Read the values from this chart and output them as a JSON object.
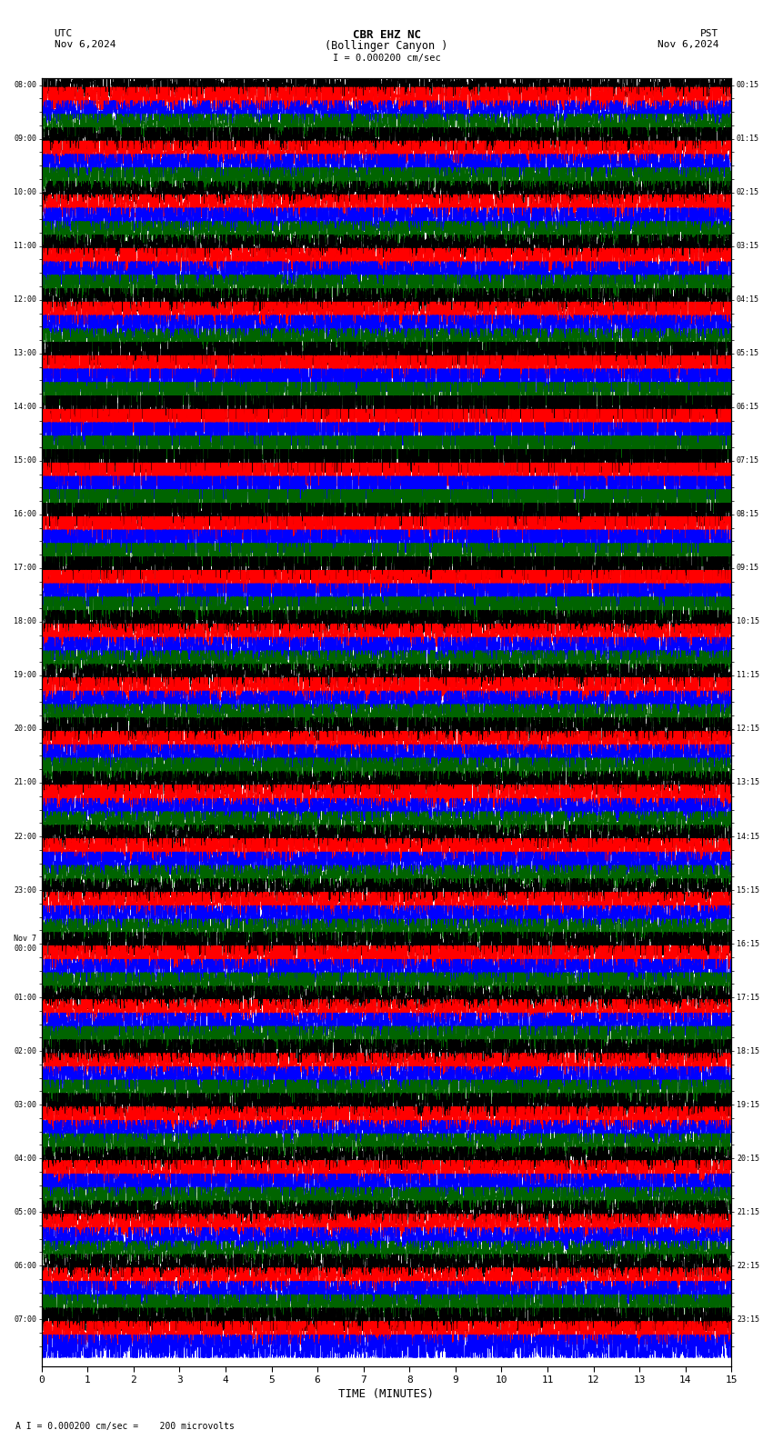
{
  "title_line1": "CBR EHZ NC",
  "title_line2": "(Bollinger Canyon )",
  "scale_label": "I = 0.000200 cm/sec",
  "utc_label": "UTC",
  "utc_date": "Nov 6,2024",
  "pst_label": "PST",
  "pst_date": "Nov 6,2024",
  "bottom_label": "A I = 0.000200 cm/sec =    200 microvolts",
  "xlabel": "TIME (MINUTES)",
  "xlim": [
    0,
    15
  ],
  "xticks": [
    0,
    1,
    2,
    3,
    4,
    5,
    6,
    7,
    8,
    9,
    10,
    11,
    12,
    13,
    14,
    15
  ],
  "background_color": "#ffffff",
  "trace_colors": [
    "#000000",
    "#ff0000",
    "#0000ff",
    "#006400"
  ],
  "left_times_utc": [
    "08:00",
    "",
    "",
    "",
    "09:00",
    "",
    "",
    "",
    "10:00",
    "",
    "",
    "",
    "11:00",
    "",
    "",
    "",
    "12:00",
    "",
    "",
    "",
    "13:00",
    "",
    "",
    "",
    "14:00",
    "",
    "",
    "",
    "15:00",
    "",
    "",
    "",
    "16:00",
    "",
    "",
    "",
    "17:00",
    "",
    "",
    "",
    "18:00",
    "",
    "",
    "",
    "19:00",
    "",
    "",
    "",
    "20:00",
    "",
    "",
    "",
    "21:00",
    "",
    "",
    "",
    "22:00",
    "",
    "",
    "",
    "23:00",
    "",
    "",
    "",
    "Nov 7\n00:00",
    "",
    "",
    "",
    "01:00",
    "",
    "",
    "",
    "02:00",
    "",
    "",
    "",
    "03:00",
    "",
    "",
    "",
    "04:00",
    "",
    "",
    "",
    "05:00",
    "",
    "",
    "",
    "06:00",
    "",
    "",
    "",
    "07:00",
    "",
    ""
  ],
  "right_times_pst": [
    "00:15",
    "",
    "",
    "",
    "01:15",
    "",
    "",
    "",
    "02:15",
    "",
    "",
    "",
    "03:15",
    "",
    "",
    "",
    "04:15",
    "",
    "",
    "",
    "05:15",
    "",
    "",
    "",
    "06:15",
    "",
    "",
    "",
    "07:15",
    "",
    "",
    "",
    "08:15",
    "",
    "",
    "",
    "09:15",
    "",
    "",
    "",
    "10:15",
    "",
    "",
    "",
    "11:15",
    "",
    "",
    "",
    "12:15",
    "",
    "",
    "",
    "13:15",
    "",
    "",
    "",
    "14:15",
    "",
    "",
    "",
    "15:15",
    "",
    "",
    "",
    "16:15",
    "",
    "",
    "",
    "17:15",
    "",
    "",
    "",
    "18:15",
    "",
    "",
    "",
    "19:15",
    "",
    "",
    "",
    "20:15",
    "",
    "",
    "",
    "21:15",
    "",
    "",
    "",
    "22:15",
    "",
    "",
    "",
    "23:15",
    "",
    ""
  ],
  "seed": 42,
  "n_points": 5000,
  "base_amplitude": 0.8,
  "high_amplitude_rows": [
    24,
    25,
    26,
    27,
    28,
    29,
    30,
    31
  ],
  "high_amplitude_value": 3.5,
  "med_amplitude_rows": [
    20,
    21,
    22,
    23,
    32,
    33,
    34,
    35,
    36,
    37,
    38,
    39
  ],
  "med_amplitude_value": 1.8
}
